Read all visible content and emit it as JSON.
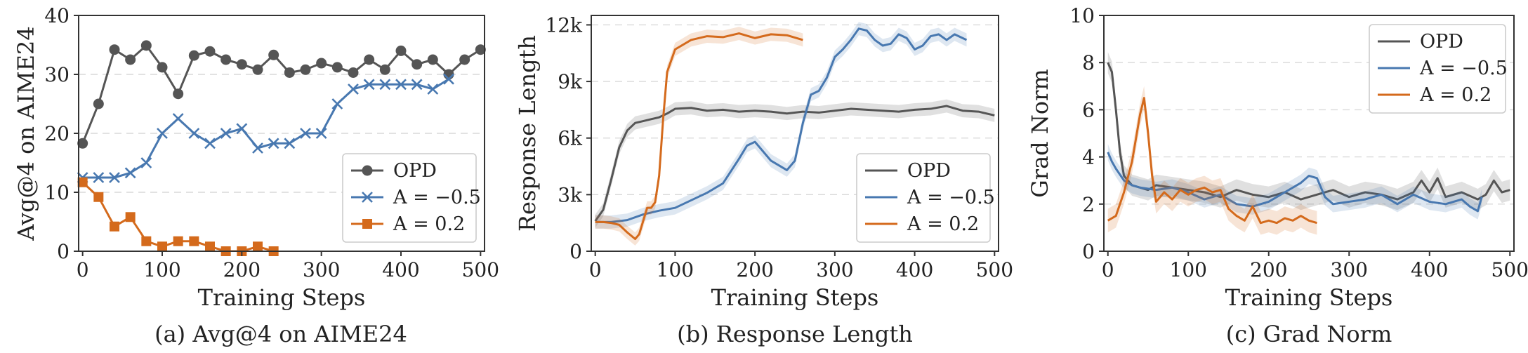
{
  "chart_data": [
    {
      "type": "line",
      "caption": "(a) Avg@4 on AIME24",
      "xlabel": "Training Steps",
      "ylabel": "Avg@4 on AIME24",
      "xlim": [
        -5,
        505
      ],
      "ylim": [
        0,
        40
      ],
      "xticks": [
        0,
        100,
        200,
        300,
        400,
        500
      ],
      "yticks": [
        0,
        10,
        20,
        30,
        40
      ],
      "xtick_labels": [
        "0",
        "100",
        "200",
        "300",
        "400",
        "500"
      ],
      "ytick_labels": [
        "0",
        "10",
        "20",
        "30",
        "40"
      ],
      "grid": true,
      "legend_position": "lower-right",
      "series": [
        {
          "name": "OPD",
          "color": "#555555",
          "marker": "circle",
          "x": [
            0,
            20,
            40,
            60,
            80,
            100,
            120,
            140,
            160,
            180,
            200,
            220,
            240,
            260,
            280,
            300,
            320,
            340,
            360,
            380,
            400,
            420,
            440,
            460,
            480,
            500
          ],
          "y": [
            18.3,
            25.0,
            34.2,
            32.5,
            34.9,
            31.2,
            26.7,
            33.2,
            33.9,
            32.5,
            31.7,
            30.8,
            33.3,
            30.3,
            30.8,
            31.9,
            31.2,
            30.3,
            32.5,
            30.8,
            34.0,
            31.7,
            32.5,
            30.0,
            32.5,
            34.2
          ]
        },
        {
          "name": "A = −0.5",
          "color": "#4878b0",
          "marker": "x",
          "x": [
            0,
            20,
            40,
            60,
            80,
            100,
            120,
            140,
            160,
            180,
            200,
            220,
            240,
            260,
            280,
            300,
            320,
            340,
            360,
            380,
            400,
            420,
            440,
            460
          ],
          "y": [
            12.5,
            12.5,
            12.5,
            13.3,
            15.0,
            20.0,
            22.5,
            20.0,
            18.3,
            20.0,
            20.8,
            17.5,
            18.3,
            18.3,
            20.0,
            20.0,
            25.0,
            27.5,
            28.3,
            28.3,
            28.3,
            28.3,
            27.5,
            29.2
          ]
        },
        {
          "name": "A = 0.2",
          "color": "#d46a1c",
          "marker": "square",
          "x": [
            0,
            20,
            40,
            60,
            80,
            100,
            120,
            140,
            160,
            180,
            200,
            220,
            240
          ],
          "y": [
            11.7,
            9.2,
            4.2,
            5.8,
            1.7,
            0.8,
            1.7,
            1.7,
            0.8,
            0.0,
            0.0,
            0.8,
            0.0
          ]
        }
      ]
    },
    {
      "type": "line",
      "caption": "(b) Response Length",
      "xlabel": "Training Steps",
      "ylabel": "Response Length",
      "xlim": [
        -5,
        505
      ],
      "ylim": [
        0,
        12500
      ],
      "xticks": [
        0,
        100,
        200,
        300,
        400,
        500
      ],
      "yticks": [
        0,
        3000,
        6000,
        9000,
        12000
      ],
      "xtick_labels": [
        "0",
        "100",
        "200",
        "300",
        "400",
        "500"
      ],
      "ytick_labels": [
        "0",
        "3k",
        "6k",
        "9k",
        "12k"
      ],
      "grid": true,
      "legend_position": "lower-right",
      "series": [
        {
          "name": "OPD",
          "color": "#555555",
          "band": 350,
          "x": [
            0,
            10,
            20,
            30,
            40,
            50,
            60,
            70,
            80,
            90,
            100,
            120,
            140,
            160,
            180,
            200,
            220,
            240,
            260,
            280,
            300,
            320,
            340,
            360,
            380,
            400,
            420,
            440,
            460,
            480,
            500
          ],
          "y": [
            1600,
            2200,
            3800,
            5500,
            6400,
            6800,
            6900,
            7000,
            7100,
            7300,
            7550,
            7600,
            7450,
            7500,
            7400,
            7450,
            7400,
            7300,
            7400,
            7350,
            7450,
            7550,
            7500,
            7450,
            7400,
            7500,
            7550,
            7700,
            7450,
            7400,
            7200
          ]
        },
        {
          "name": "A = −0.5",
          "color": "#4878b0",
          "band": 350,
          "x": [
            0,
            20,
            40,
            60,
            80,
            100,
            120,
            140,
            160,
            180,
            190,
            200,
            220,
            240,
            250,
            260,
            270,
            280,
            290,
            300,
            310,
            320,
            330,
            340,
            350,
            360,
            370,
            380,
            390,
            400,
            410,
            420,
            430,
            440,
            450,
            460,
            465
          ],
          "y": [
            1550,
            1550,
            1650,
            1950,
            2150,
            2300,
            2700,
            3100,
            3600,
            4900,
            5600,
            5800,
            4800,
            4300,
            4800,
            6800,
            8300,
            8500,
            9200,
            10300,
            10700,
            11200,
            11800,
            11700,
            11200,
            10900,
            11000,
            11500,
            11300,
            10700,
            10900,
            11400,
            11500,
            11200,
            11500,
            11300,
            11200
          ]
        },
        {
          "name": "A = 0.2",
          "color": "#d46a1c",
          "band": 350,
          "x": [
            0,
            10,
            20,
            30,
            40,
            50,
            55,
            60,
            65,
            70,
            75,
            80,
            85,
            90,
            100,
            120,
            140,
            160,
            180,
            200,
            220,
            240,
            260
          ],
          "y": [
            1550,
            1550,
            1500,
            1400,
            1000,
            650,
            900,
            1600,
            2300,
            2300,
            2600,
            4000,
            7000,
            9500,
            10700,
            11200,
            11400,
            11350,
            11550,
            11300,
            11500,
            11450,
            11200
          ]
        }
      ]
    },
    {
      "type": "line",
      "caption": "(c) Grad Norm",
      "xlabel": "Training Steps",
      "ylabel": "Grad Norm",
      "xlim": [
        -5,
        505
      ],
      "ylim": [
        0,
        10
      ],
      "xticks": [
        0,
        100,
        200,
        300,
        400,
        500
      ],
      "yticks": [
        0,
        2,
        4,
        6,
        8,
        10
      ],
      "xtick_labels": [
        "0",
        "100",
        "200",
        "300",
        "400",
        "500"
      ],
      "ytick_labels": [
        "0",
        "2",
        "4",
        "6",
        "8",
        "10"
      ],
      "grid": true,
      "legend_position": "top-right",
      "series": [
        {
          "name": "OPD",
          "color": "#555555",
          "band": 0.45,
          "x": [
            0,
            5,
            10,
            15,
            20,
            30,
            40,
            50,
            60,
            80,
            100,
            120,
            140,
            160,
            180,
            200,
            220,
            240,
            260,
            280,
            300,
            320,
            340,
            360,
            380,
            390,
            400,
            410,
            420,
            440,
            460,
            470,
            480,
            490,
            500
          ],
          "y": [
            8.0,
            7.6,
            6.0,
            4.2,
            3.2,
            2.8,
            2.7,
            2.6,
            2.8,
            2.7,
            2.6,
            2.5,
            2.3,
            2.6,
            2.4,
            2.3,
            2.5,
            2.2,
            2.4,
            2.6,
            2.3,
            2.5,
            2.4,
            2.2,
            2.5,
            3.0,
            2.5,
            3.1,
            2.3,
            2.5,
            2.2,
            2.4,
            3.0,
            2.5,
            2.6
          ]
        },
        {
          "name": "A = −0.5",
          "color": "#4878b0",
          "band": 0.35,
          "x": [
            0,
            5,
            10,
            20,
            30,
            40,
            60,
            80,
            100,
            120,
            140,
            160,
            180,
            200,
            220,
            240,
            250,
            260,
            270,
            280,
            300,
            320,
            340,
            360,
            380,
            400,
            420,
            440,
            450,
            460,
            465
          ],
          "y": [
            4.2,
            3.8,
            3.5,
            3.0,
            2.8,
            2.7,
            2.6,
            2.7,
            2.5,
            2.2,
            2.4,
            2.0,
            1.9,
            2.1,
            2.5,
            2.9,
            3.2,
            3.1,
            2.3,
            2.0,
            2.1,
            2.2,
            2.4,
            2.0,
            2.4,
            2.1,
            2.0,
            2.2,
            1.9,
            1.7,
            2.3
          ]
        },
        {
          "name": "A = 0.2",
          "color": "#d46a1c",
          "band": 0.5,
          "x": [
            0,
            10,
            20,
            30,
            40,
            45,
            50,
            55,
            60,
            70,
            80,
            90,
            100,
            110,
            120,
            130,
            140,
            150,
            160,
            170,
            180,
            190,
            200,
            210,
            220,
            230,
            240,
            250,
            260
          ],
          "y": [
            1.3,
            1.5,
            2.5,
            3.8,
            5.8,
            6.5,
            5.0,
            3.2,
            2.1,
            2.5,
            2.2,
            2.6,
            2.4,
            2.6,
            2.7,
            2.5,
            2.6,
            1.8,
            1.5,
            1.3,
            1.9,
            1.2,
            1.3,
            1.2,
            1.4,
            1.3,
            1.5,
            1.3,
            1.2
          ]
        }
      ]
    }
  ]
}
